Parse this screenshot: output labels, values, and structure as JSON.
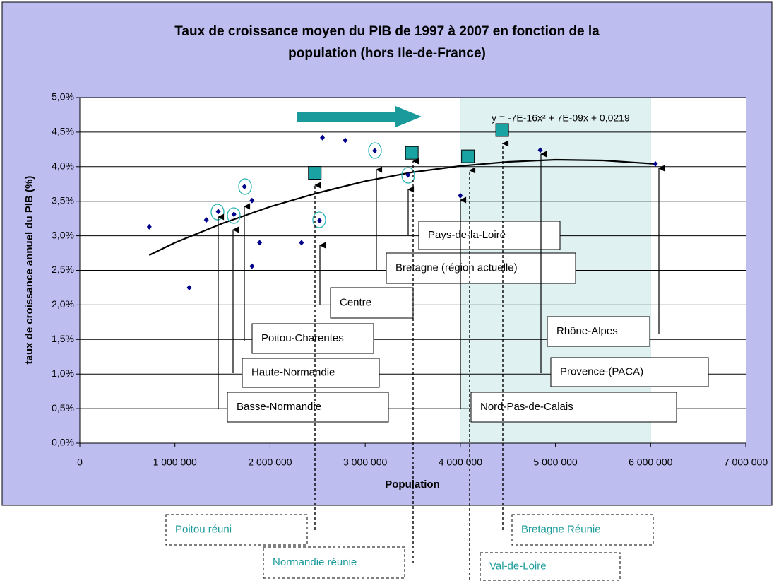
{
  "chart_data": {
    "type": "scatter",
    "title": [
      "Taux de croissance moyen du PIB de 1997 à 2007 en fonction de la",
      "population (hors Ile-de-France)"
    ],
    "x_label": "Population",
    "y_label": "taux de croissance annuel du PIB (%)",
    "xlim": [
      0,
      7000000
    ],
    "ylim": [
      0,
      5
    ],
    "xticks": [
      0,
      {
        "value": 1000000,
        "label": "1 000 000"
      },
      {
        "value": 2000000,
        "label": "2 000 000"
      },
      {
        "value": 3000000,
        "label": "3 000 000"
      },
      {
        "value": 4000000,
        "label": "4 000 000"
      },
      {
        "value": 5000000,
        "label": "5 000 000"
      },
      {
        "value": 6000000,
        "label": "6 000 000"
      },
      {
        "value": 7000000,
        "label": "7 000 000"
      }
    ],
    "yticks": [
      {
        "value": 0,
        "label": "0,0%"
      },
      {
        "value": 0.5,
        "label": "0,5%"
      },
      {
        "value": 1,
        "label": "1,0%"
      },
      {
        "value": 1.5,
        "label": "1,5%"
      },
      {
        "value": 2,
        "label": "2,0%"
      },
      {
        "value": 2.5,
        "label": "2,5%"
      },
      {
        "value": 3,
        "label": "3,0%"
      },
      {
        "value": 3.5,
        "label": "3,5%"
      },
      {
        "value": 4,
        "label": "4,0%"
      },
      {
        "value": 4.5,
        "label": "4,5%"
      },
      {
        "value": 5,
        "label": "5,0%"
      }
    ],
    "grid": true,
    "highlight_range": [
      4000000,
      6000000
    ],
    "series": [
      {
        "marker": "diamond",
        "color": "#00008b",
        "x": [
          730000,
          1150000,
          1330000,
          1455000,
          1620000,
          1730000,
          1810000,
          1810000,
          1890000,
          2330000,
          2520000,
          2550000,
          2790000,
          3100000,
          3450000,
          4000000,
          4840000,
          6050000
        ],
        "values": [
          3.13,
          2.25,
          3.23,
          3.35,
          3.31,
          3.71,
          3.51,
          2.56,
          2.9,
          2.9,
          3.22,
          4.42,
          4.38,
          4.23,
          3.88,
          3.58,
          4.24,
          4.04
        ]
      },
      {
        "marker": "square",
        "color": "#1aa3a3",
        "x": [
          2470000,
          3490000,
          4080000,
          4440000
        ],
        "values": [
          3.91,
          4.2,
          4.15,
          4.53
        ]
      }
    ],
    "trendline": {
      "label": "y = -7E-16x² + 7E-09x + 0,0219",
      "color": "#000000",
      "x": [
        730000,
        1000000,
        1500000,
        2000000,
        2500000,
        3000000,
        3500000,
        4000000,
        4500000,
        5000000,
        5500000,
        6050000
      ],
      "values": [
        2.72,
        2.9,
        3.18,
        3.42,
        3.62,
        3.79,
        3.92,
        4.01,
        4.07,
        4.1,
        4.09,
        4.04
      ]
    },
    "annotations": [
      "Basse-Normandie",
      "Haute-Normandie",
      "Poitou-Charentes",
      "Centre",
      "Bretagne (région actuelle)",
      "Pays-de-la-Loire",
      "Nord-Pas-de-Calais",
      "Rhône-Alpes",
      "Provence-(PACA)"
    ],
    "reunion_labels": [
      "Poitou réuni",
      "Normandie réunie",
      "Val-de-Loire",
      "Bretagne Réunie"
    ]
  }
}
